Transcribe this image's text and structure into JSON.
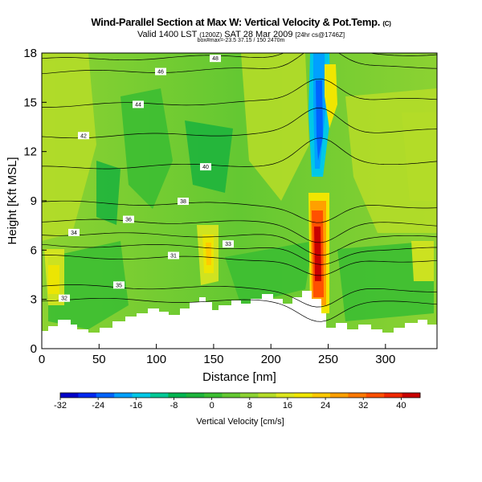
{
  "header": {
    "title": "Wind-Parallel Section at Max W: Vertical Velocity & Pot.Temp.",
    "title_mark": "(C)",
    "valid_line": "Valid 1400 LST",
    "valid_utc": "(1200Z)",
    "valid_date": "SAT 28 Mar 2009",
    "forecast": "[24hr cs@1746Z]",
    "subline": "box#max=-23.5 37.15 / 150 2470m"
  },
  "chart_data": {
    "type": "heatmap",
    "xlabel": "Distance [nm]",
    "ylabel": "Height [Kft MSL]",
    "xlim": [
      0,
      345
    ],
    "ylim": [
      0,
      18
    ],
    "xticks": [
      0,
      50,
      100,
      150,
      200,
      250,
      300
    ],
    "yticks": [
      0,
      3,
      6,
      9,
      12,
      15,
      18
    ],
    "colorbar": {
      "label": "Vertical Velocity [cm/s]",
      "ticks": [
        -32,
        -24,
        -16,
        -8,
        0,
        8,
        16,
        24,
        32,
        40
      ],
      "range": [
        -32,
        44
      ],
      "colors": [
        "#0000c8",
        "#0028f0",
        "#0064ff",
        "#00a0ff",
        "#00c8e6",
        "#00c896",
        "#00b450",
        "#1eb43c",
        "#3cbe32",
        "#64c832",
        "#8cd232",
        "#b4dc28",
        "#dce61e",
        "#f0e600",
        "#ffc800",
        "#ffa000",
        "#ff7800",
        "#ff5000",
        "#f02800",
        "#c80000"
      ]
    },
    "theta_contours": [
      {
        "label": "31",
        "height": 5.6
      },
      {
        "label": "32",
        "height": 3.0
      },
      {
        "label": "33",
        "height": 6.3
      },
      {
        "label": "34",
        "height": 7.0
      },
      {
        "label": "35",
        "height": 3.8
      },
      {
        "label": "36",
        "height": 7.8
      },
      {
        "label": "38",
        "height": 8.9
      },
      {
        "label": "40",
        "height": 11.0
      },
      {
        "label": "42",
        "height": 12.9
      },
      {
        "label": "44",
        "height": 14.8
      },
      {
        "label": "46",
        "height": 16.8
      },
      {
        "label": "48",
        "height": 17.6
      }
    ]
  }
}
